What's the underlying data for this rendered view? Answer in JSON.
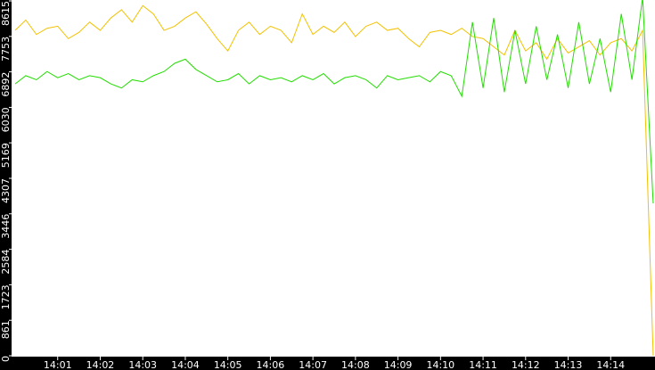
{
  "chart_data": {
    "type": "line",
    "categories": [
      null,
      null,
      null,
      null,
      "14:01",
      null,
      null,
      null,
      "14:02",
      null,
      null,
      null,
      "14:03",
      null,
      null,
      null,
      "14:04",
      null,
      null,
      null,
      "14:05",
      null,
      null,
      null,
      "14:06",
      null,
      null,
      null,
      "14:07",
      null,
      null,
      null,
      "14:08",
      null,
      null,
      null,
      "14:09",
      null,
      null,
      null,
      "14:10",
      null,
      null,
      null,
      "14:11",
      null,
      null,
      null,
      "14:12",
      null,
      null,
      null,
      "14:13",
      null,
      null,
      null,
      "14:14",
      null,
      null,
      null,
      null
    ],
    "series": [
      {
        "color": "#f2c200",
        "values": [
          7900,
          8150,
          7800,
          7950,
          8000,
          7700,
          7850,
          8100,
          7900,
          8200,
          8400,
          8100,
          8500,
          8300,
          7900,
          8000,
          8200,
          8350,
          8050,
          7700,
          7400,
          7900,
          8100,
          7800,
          8000,
          7900,
          7600,
          8300,
          7800,
          8000,
          7850,
          8100,
          7750,
          8000,
          8100,
          7900,
          7950,
          7700,
          7500,
          7850,
          7900,
          7800,
          7950,
          7750,
          7700,
          7500,
          7300,
          7900,
          7400,
          7600,
          7200,
          7700,
          7350,
          7500,
          7650,
          7300,
          7600,
          7700,
          7400,
          7900,
          0
        ]
      },
      {
        "color": "#22dd00",
        "values": [
          6600,
          6800,
          6700,
          6900,
          6750,
          6850,
          6700,
          6800,
          6750,
          6600,
          6500,
          6700,
          6650,
          6800,
          6900,
          7100,
          7200,
          6950,
          6800,
          6650,
          6700,
          6850,
          6600,
          6800,
          6700,
          6750,
          6650,
          6800,
          6700,
          6850,
          6600,
          6750,
          6800,
          6700,
          6500,
          6800,
          6700,
          6750,
          6800,
          6650,
          6900,
          6800,
          6300,
          8100,
          6500,
          8200,
          6400,
          7900,
          6600,
          8000,
          6700,
          7800,
          6500,
          8100,
          6600,
          7700,
          6400,
          8300,
          6700,
          8700,
          3700
        ]
      }
    ],
    "ylim": [
      0,
      8615
    ],
    "yticks": [
      0,
      861,
      1723,
      2584,
      3446,
      4307,
      5169,
      6030,
      6892,
      7753,
      8615
    ]
  }
}
